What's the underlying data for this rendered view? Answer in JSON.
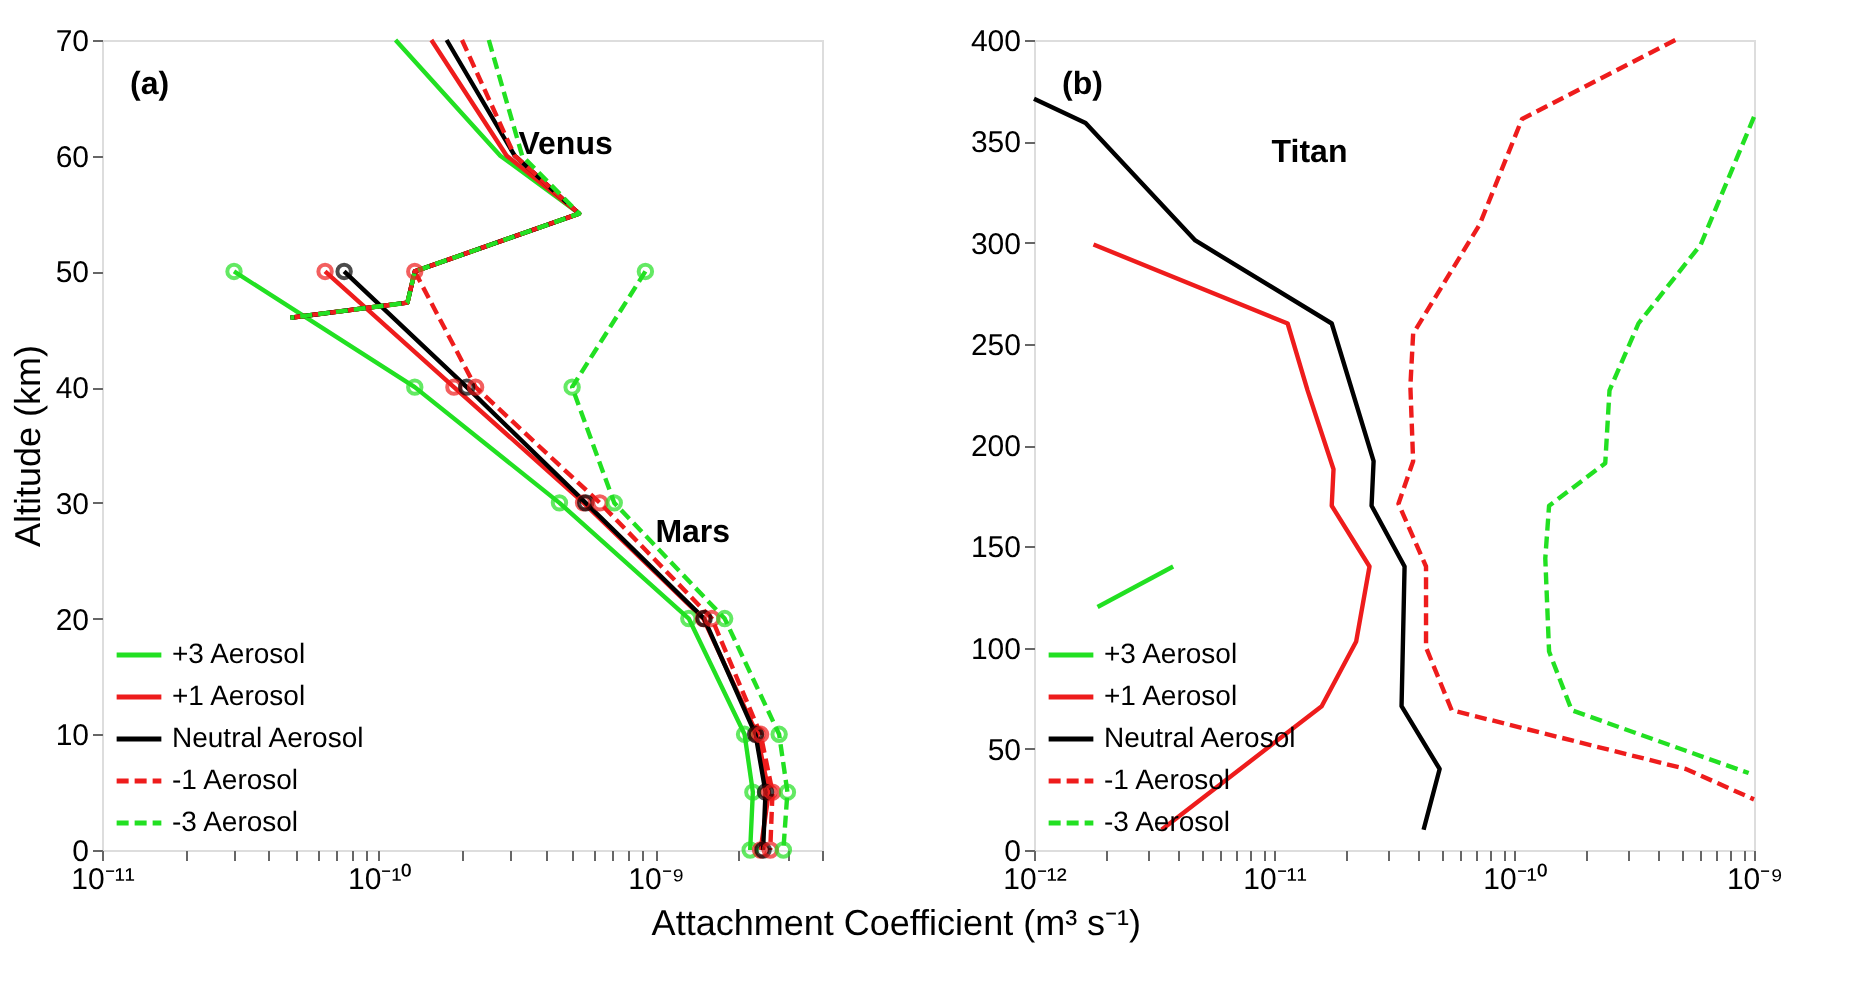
{
  "chart_data": [
    {
      "type": "line",
      "xlabel": "Attachment Coefficient (m³ s⁻¹)",
      "ylabel": "Altitude (km)",
      "log": "x",
      "grid": false,
      "legend": "bottom left",
      "xlim": [
        1e-11,
        4e-09
      ],
      "ylim": [
        0,
        70
      ],
      "yticks": [
        0,
        10,
        20,
        30,
        40,
        50,
        60,
        70
      ],
      "xticks": [
        {
          "value": 1e-11,
          "label": "10⁻¹¹"
        },
        {
          "value": 2e-11,
          "label": null
        },
        {
          "value": 3e-11,
          "label": null
        },
        {
          "value": 4e-11,
          "label": null
        },
        {
          "value": 5e-11,
          "label": null
        },
        {
          "value": 6e-11,
          "label": null
        },
        {
          "value": 7e-11,
          "label": null
        },
        {
          "value": 8e-11,
          "label": null
        },
        {
          "value": 9e-11,
          "label": null
        },
        {
          "value": 1e-10,
          "label": "10⁻¹⁰"
        },
        {
          "value": 2e-10,
          "label": null
        },
        {
          "value": 3e-10,
          "label": null
        },
        {
          "value": 4e-10,
          "label": null
        },
        {
          "value": 5e-10,
          "label": null
        },
        {
          "value": 6e-10,
          "label": null
        },
        {
          "value": 7e-10,
          "label": null
        },
        {
          "value": 8e-10,
          "label": null
        },
        {
          "value": 9e-10,
          "label": null
        },
        {
          "value": 1e-09,
          "label": "10⁻⁹"
        },
        {
          "value": 2e-09,
          "label": null
        },
        {
          "value": 3e-09,
          "label": null
        },
        {
          "value": 4e-09,
          "label": null
        }
      ],
      "annotations": [
        "(a)",
        {
          "text": "Venus",
          "x": 3.2e-10,
          "y": 61
        },
        {
          "text": "Mars",
          "x": 1e-09,
          "y": 27.5
        }
      ],
      "series": [
        {
          "name": "+3 Aerosol",
          "color": "#22e022",
          "line_style": "solid",
          "marker": "circle",
          "x": [
            3e-11,
            1.35e-10,
            4.5e-10,
            1.32e-09,
            2.1e-09,
            2.25e-09,
            2.2e-09
          ],
          "values": [
            50,
            40,
            30,
            20,
            10,
            5,
            0
          ]
        },
        {
          "name": "+1 Aerosol",
          "color": "#ee1c1c",
          "line_style": "solid",
          "marker": "circle",
          "x": [
            6.4e-11,
            1.87e-10,
            5.5e-10,
            1.49e-09,
            2.33e-09,
            2.57e-09,
            2.4e-09
          ],
          "values": [
            50,
            40,
            30,
            20,
            10,
            5,
            0
          ]
        },
        {
          "name": "Neutral Aerosol",
          "color": "#000000",
          "line_style": "solid",
          "marker": "circle",
          "x": [
            7.5e-11,
            2.08e-10,
            5.6e-10,
            1.5e-09,
            2.3e-09,
            2.5e-09,
            2.45e-09
          ],
          "values": [
            50,
            40,
            30,
            20,
            10,
            5,
            0
          ]
        },
        {
          "name": "-1 Aerosol",
          "color": "#ee1c1c",
          "line_style": "dashed",
          "marker": "circle",
          "x": [
            1.35e-10,
            2.24e-10,
            6.3e-10,
            1.6e-09,
            2.4e-09,
            2.65e-09,
            2.6e-09
          ],
          "values": [
            50,
            40,
            30,
            20,
            10,
            5,
            0
          ]
        },
        {
          "name": "-3 Aerosol",
          "color": "#22e022",
          "line_style": "dashed",
          "marker": "circle",
          "x": [
            9.2e-10,
            5e-10,
            7.1e-10,
            1.78e-09,
            2.8e-09,
            3e-09,
            2.9e-09
          ],
          "values": [
            50,
            40,
            30,
            20,
            10,
            5,
            0
          ]
        },
        {
          "color": "#22e022",
          "line_style": "solid",
          "marker": "none",
          "x": [
            1.15e-10,
            2.75e-10,
            5.3e-10,
            1.35e-10,
            1.27e-10,
            4.8e-11
          ],
          "values": [
            70,
            60,
            55,
            50,
            47.3,
            46
          ]
        },
        {
          "color": "#ee1c1c",
          "line_style": "solid",
          "marker": "none",
          "x": [
            1.55e-10,
            2.9e-10,
            5.3e-10,
            1.35e-10,
            1.27e-10,
            4.8e-11
          ],
          "values": [
            70,
            60,
            55,
            50,
            47.3,
            46
          ]
        },
        {
          "color": "#000000",
          "line_style": "solid",
          "marker": "none",
          "x": [
            1.76e-10,
            3.1e-10,
            5.3e-10,
            1.35e-10,
            1.27e-10,
            4.8e-11
          ],
          "values": [
            70,
            60,
            55,
            50,
            47.3,
            46
          ]
        },
        {
          "color": "#ee1c1c",
          "line_style": "dashed",
          "marker": "none",
          "x": [
            2e-10,
            3.1e-10,
            5.3e-10,
            1.35e-10,
            1.27e-10,
            4.8e-11
          ],
          "values": [
            70,
            60,
            55,
            50,
            47.3,
            46
          ]
        },
        {
          "color": "#22e022",
          "line_style": "dashed",
          "marker": "none",
          "x": [
            2.5e-10,
            3.3e-10,
            5.3e-10,
            1.35e-10,
            1.27e-10,
            4.8e-11
          ],
          "values": [
            70,
            60,
            55,
            50,
            47.3,
            46
          ]
        }
      ]
    },
    {
      "type": "line",
      "log": "x",
      "grid": false,
      "legend": "bottom left",
      "xlim": [
        1e-12,
        1e-09
      ],
      "ylim": [
        0,
        400
      ],
      "yticks": [
        0,
        50,
        100,
        150,
        200,
        250,
        300,
        350,
        400
      ],
      "xticks": [
        {
          "value": 1e-12,
          "label": "10⁻¹²"
        },
        {
          "value": 2e-12,
          "label": null
        },
        {
          "value": 3e-12,
          "label": null
        },
        {
          "value": 4e-12,
          "label": null
        },
        {
          "value": 5e-12,
          "label": null
        },
        {
          "value": 6e-12,
          "label": null
        },
        {
          "value": 7e-12,
          "label": null
        },
        {
          "value": 8e-12,
          "label": null
        },
        {
          "value": 9e-12,
          "label": null
        },
        {
          "value": 1e-11,
          "label": "10⁻¹¹"
        },
        {
          "value": 2e-11,
          "label": null
        },
        {
          "value": 3e-11,
          "label": null
        },
        {
          "value": 4e-11,
          "label": null
        },
        {
          "value": 5e-11,
          "label": null
        },
        {
          "value": 6e-11,
          "label": null
        },
        {
          "value": 7e-11,
          "label": null
        },
        {
          "value": 8e-11,
          "label": null
        },
        {
          "value": 9e-11,
          "label": null
        },
        {
          "value": 1e-10,
          "label": "10⁻¹⁰"
        },
        {
          "value": 2e-10,
          "label": null
        },
        {
          "value": 3e-10,
          "label": null
        },
        {
          "value": 4e-10,
          "label": null
        },
        {
          "value": 5e-10,
          "label": null
        },
        {
          "value": 6e-10,
          "label": null
        },
        {
          "value": 7e-10,
          "label": null
        },
        {
          "value": 8e-10,
          "label": null
        },
        {
          "value": 9e-10,
          "label": null
        },
        {
          "value": 1e-09,
          "label": "10⁻⁹"
        }
      ],
      "annotations": [
        "(b)",
        "Titan"
      ],
      "series": [
        {
          "name": "+3 Aerosol",
          "color": "#22e022",
          "line_style": "solid",
          "marker": "none",
          "x": [
            1.84e-12,
            3.8e-12
          ],
          "values": [
            120,
            140
          ]
        },
        {
          "name": "+1 Aerosol",
          "color": "#ee1c1c",
          "line_style": "solid",
          "marker": "none",
          "x": [
            1.77e-12,
            1.14e-11,
            1.38e-11,
            1.77e-11,
            1.74e-11,
            2.5e-11,
            2.2e-11,
            1.58e-11,
            3.4e-12
          ],
          "values": [
            299,
            260,
            227,
            188,
            170,
            140,
            103,
            71,
            10
          ]
        },
        {
          "name": "Neutral Aerosol",
          "color": "#000000",
          "line_style": "solid",
          "marker": "none",
          "x": [
            1e-12,
            1.64e-12,
            4.7e-12,
            1.74e-11,
            2.6e-11,
            2.55e-11,
            3.5e-11,
            3.4e-11,
            4.9e-11,
            4.2e-11
          ],
          "values": [
            371,
            359,
            301,
            260,
            192,
            170,
            140,
            71,
            40,
            10
          ]
        },
        {
          "name": "-1 Aerosol",
          "color": "#ee1c1c",
          "line_style": "dashed",
          "marker": "none",
          "x": [
            4.7e-10,
            1.08e-10,
            7.2e-11,
            3.8e-11,
            3.7e-11,
            3.8e-11,
            3.3e-11,
            4.3e-11,
            4.3e-11,
            5.5e-11,
            5.2e-10,
            1e-09
          ],
          "values": [
            400,
            361,
            309,
            255,
            229,
            192,
            171,
            140,
            100,
            69,
            40,
            25
          ]
        },
        {
          "name": "-3 Aerosol",
          "color": "#22e022",
          "line_style": "dashed",
          "marker": "none",
          "x": [
            1e-09,
            6e-10,
            3.3e-10,
            2.5e-10,
            2.4e-10,
            1.4e-10,
            1.35e-10,
            1.4e-10,
            1.74e-10,
            9.5e-10
          ],
          "values": [
            362,
            299,
            260,
            227,
            191,
            170,
            144,
            98,
            69,
            38
          ]
        }
      ]
    }
  ]
}
